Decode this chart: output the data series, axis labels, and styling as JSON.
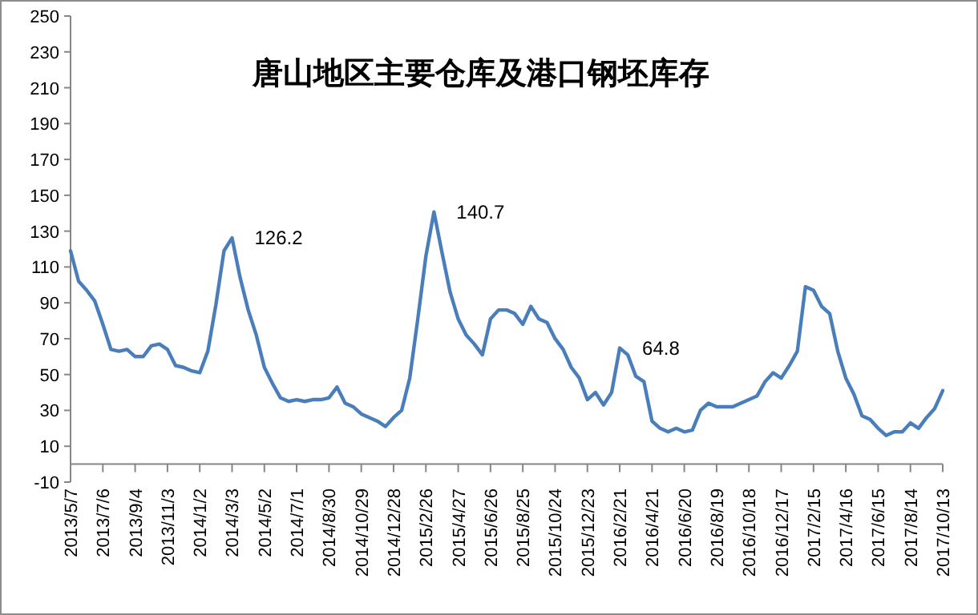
{
  "chart_data": {
    "type": "line",
    "title": "唐山地区主要仓库及港口钢坯库存",
    "categories": [
      "2013/5/7",
      null,
      null,
      null,
      "2013/7/6",
      null,
      null,
      null,
      "2013/9/4",
      null,
      null,
      null,
      "2013/11/3",
      null,
      null,
      null,
      "2014/1/2",
      null,
      null,
      null,
      "2014/3/3",
      null,
      null,
      null,
      "2014/5/2",
      null,
      null,
      null,
      "2014/7/1",
      null,
      null,
      null,
      "2014/8/30",
      null,
      null,
      null,
      "2014/10/29",
      null,
      null,
      null,
      "2014/12/28",
      null,
      null,
      null,
      "2015/2/26",
      null,
      null,
      null,
      "2015/4/27",
      null,
      null,
      null,
      "2015/6/26",
      null,
      null,
      null,
      "2015/8/25",
      null,
      null,
      null,
      "2015/10/24",
      null,
      null,
      null,
      "2015/12/23",
      null,
      null,
      null,
      "2016/2/21",
      null,
      null,
      null,
      "2016/4/21",
      null,
      null,
      null,
      "2016/6/20",
      null,
      null,
      null,
      "2016/8/19",
      null,
      null,
      null,
      "2016/10/18",
      null,
      null,
      null,
      "2016/12/17",
      null,
      null,
      null,
      "2017/2/15",
      null,
      null,
      null,
      "2017/4/16",
      null,
      null,
      null,
      "2017/6/15",
      null,
      null,
      null,
      "2017/8/14",
      null,
      null,
      null,
      "2017/10/13"
    ],
    "series": [
      {
        "color": "#4a7ebb",
        "values": [
          119,
          102,
          97,
          91,
          78,
          64,
          63,
          64,
          60,
          60,
          66,
          67,
          64,
          55,
          54,
          52,
          51,
          63,
          89,
          119,
          126.2,
          104,
          86,
          72,
          54,
          45,
          37,
          35,
          36,
          35,
          36,
          36,
          37,
          43,
          34,
          32,
          28,
          26,
          24,
          21,
          26,
          30,
          48,
          81,
          116,
          140.7,
          118,
          96,
          81,
          72,
          67,
          61,
          81,
          86,
          86,
          84,
          78,
          88,
          81,
          79,
          70,
          64,
          54,
          48,
          36,
          40,
          33,
          40,
          64.8,
          61,
          49,
          46,
          24,
          20,
          18,
          20,
          18,
          19,
          30,
          34,
          32,
          32,
          32,
          34,
          36,
          38,
          46,
          51,
          48,
          55,
          63,
          99,
          97,
          88,
          84,
          63,
          48,
          39,
          27,
          25,
          20,
          16,
          18,
          18,
          23,
          20,
          26,
          31,
          41
        ],
        "value_labels": [
          null,
          null,
          null,
          null,
          null,
          null,
          null,
          null,
          null,
          null,
          null,
          null,
          null,
          null,
          null,
          null,
          null,
          null,
          null,
          null,
          "126.2",
          null,
          null,
          null,
          null,
          null,
          null,
          null,
          null,
          null,
          null,
          null,
          null,
          null,
          null,
          null,
          null,
          null,
          null,
          null,
          null,
          null,
          null,
          null,
          null,
          "140.7",
          null,
          null,
          null,
          null,
          null,
          null,
          null,
          null,
          null,
          null,
          null,
          null,
          null,
          null,
          null,
          null,
          null,
          null,
          null,
          null,
          null,
          null,
          "64.8",
          null,
          null,
          null,
          null,
          null,
          null,
          null,
          null,
          null,
          null,
          null,
          null,
          null,
          null,
          null,
          null,
          null,
          null,
          null,
          null,
          null,
          null,
          null,
          null,
          null,
          null,
          null,
          null,
          null,
          null,
          null,
          null,
          null,
          null,
          null,
          null,
          null,
          null,
          null,
          null
        ]
      }
    ],
    "ylim": [
      -10,
      250
    ],
    "yticks": [
      -10,
      10,
      30,
      50,
      70,
      90,
      110,
      130,
      150,
      170,
      190,
      210,
      230,
      250
    ],
    "grid": false,
    "marker": "none",
    "line_style": "solid"
  }
}
